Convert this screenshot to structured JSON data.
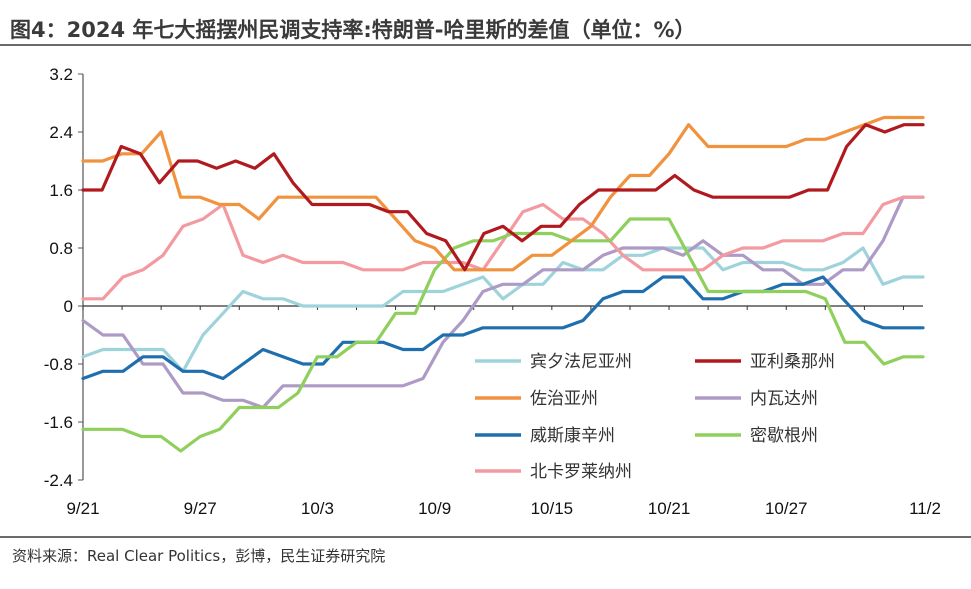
{
  "title": "图4：2024 年七大摇摆州民调支持率:特朗普-哈里斯的差值（单位：%）",
  "source": "资料来源：Real Clear Politics，彭博，民生证券研究院",
  "chart_data": {
    "type": "line",
    "title": "图4：2024 年七大摇摆州民调支持率:特朗普-哈里斯的差值（单位：%）",
    "xlabel": "",
    "ylabel": "",
    "ylim": [
      -2.4,
      3.2
    ],
    "yticks": [
      "3.2",
      "2.4",
      "1.6",
      "0.8",
      "0",
      "-0.8",
      "-1.6",
      "-2.4"
    ],
    "xticks": [
      "9/21",
      "9/27",
      "10/3",
      "10/9",
      "10/15",
      "10/21",
      "10/27",
      "11/2"
    ],
    "grid": false,
    "legend_position": "bottom-right",
    "series": [
      {
        "name": "宾夕法尼亚州",
        "color": "#9fd3dc",
        "values": [
          -0.7,
          -0.6,
          -0.6,
          -0.6,
          -0.6,
          -0.9,
          -0.4,
          -0.1,
          0.2,
          0.1,
          0.1,
          0.0,
          0.0,
          0.0,
          0.0,
          0.0,
          0.2,
          0.2,
          0.2,
          0.3,
          0.4,
          0.1,
          0.3,
          0.3,
          0.6,
          0.5,
          0.5,
          0.7,
          0.7,
          0.8,
          0.8,
          0.8,
          0.5,
          0.6,
          0.6,
          0.6,
          0.5,
          0.5,
          0.6,
          0.8,
          0.3,
          0.4,
          0.4
        ]
      },
      {
        "name": "亚利桑那州",
        "color": "#b0191e",
        "values": [
          1.6,
          1.6,
          2.2,
          2.1,
          1.7,
          2.0,
          2.0,
          1.9,
          2.0,
          1.9,
          2.1,
          1.7,
          1.4,
          1.4,
          1.4,
          1.4,
          1.3,
          1.3,
          1.0,
          0.9,
          0.5,
          1.0,
          1.1,
          0.9,
          1.1,
          1.1,
          1.4,
          1.6,
          1.6,
          1.6,
          1.6,
          1.8,
          1.6,
          1.5,
          1.5,
          1.5,
          1.5,
          1.5,
          1.6,
          1.6,
          2.2,
          2.5,
          2.4,
          2.5,
          2.5
        ]
      },
      {
        "name": "佐治亚州",
        "color": "#f0923e",
        "values": [
          2.0,
          2.0,
          2.1,
          2.1,
          2.4,
          1.5,
          1.5,
          1.4,
          1.4,
          1.2,
          1.5,
          1.5,
          1.5,
          1.5,
          1.5,
          1.5,
          1.2,
          0.9,
          0.8,
          0.5,
          0.5,
          0.5,
          0.5,
          0.7,
          0.7,
          0.9,
          1.1,
          1.5,
          1.8,
          1.8,
          2.1,
          2.5,
          2.2,
          2.2,
          2.2,
          2.2,
          2.2,
          2.3,
          2.3,
          2.4,
          2.5,
          2.6,
          2.6,
          2.6
        ]
      },
      {
        "name": "内瓦达州",
        "color": "#ad9bc6",
        "values": [
          -0.2,
          -0.4,
          -0.4,
          -0.8,
          -0.8,
          -1.2,
          -1.2,
          -1.3,
          -1.3,
          -1.4,
          -1.1,
          -1.1,
          -1.1,
          -1.1,
          -1.1,
          -1.1,
          -1.1,
          -1.0,
          -0.5,
          -0.2,
          0.2,
          0.3,
          0.3,
          0.5,
          0.5,
          0.5,
          0.7,
          0.8,
          0.8,
          0.8,
          0.7,
          0.9,
          0.7,
          0.7,
          0.5,
          0.5,
          0.3,
          0.3,
          0.5,
          0.5,
          0.9,
          1.5,
          1.5
        ]
      },
      {
        "name": "威斯康辛州",
        "color": "#1f6fae",
        "values": [
          -1.0,
          -0.9,
          -0.9,
          -0.7,
          -0.7,
          -0.9,
          -0.9,
          -1.0,
          -0.8,
          -0.6,
          -0.7,
          -0.8,
          -0.8,
          -0.5,
          -0.5,
          -0.5,
          -0.6,
          -0.6,
          -0.4,
          -0.4,
          -0.3,
          -0.3,
          -0.3,
          -0.3,
          -0.3,
          -0.2,
          0.1,
          0.2,
          0.2,
          0.4,
          0.4,
          0.1,
          0.1,
          0.2,
          0.2,
          0.3,
          0.3,
          0.4,
          0.1,
          -0.2,
          -0.3,
          -0.3,
          -0.3
        ]
      },
      {
        "name": "密歇根州",
        "color": "#8fcf5c",
        "values": [
          -1.7,
          -1.7,
          -1.7,
          -1.8,
          -1.8,
          -2.0,
          -1.8,
          -1.7,
          -1.4,
          -1.4,
          -1.4,
          -1.2,
          -0.7,
          -0.7,
          -0.5,
          -0.5,
          -0.1,
          -0.1,
          0.5,
          0.8,
          0.9,
          0.9,
          1.0,
          1.0,
          1.0,
          0.9,
          0.9,
          0.9,
          1.2,
          1.2,
          1.2,
          0.7,
          0.2,
          0.2,
          0.2,
          0.2,
          0.2,
          0.2,
          0.1,
          -0.5,
          -0.5,
          -0.8,
          -0.7,
          -0.7
        ]
      },
      {
        "name": "北卡罗莱纳州",
        "color": "#f39aa0",
        "values": [
          0.1,
          0.1,
          0.4,
          0.5,
          0.7,
          1.1,
          1.2,
          1.4,
          0.7,
          0.6,
          0.7,
          0.6,
          0.6,
          0.6,
          0.5,
          0.5,
          0.5,
          0.6,
          0.6,
          0.6,
          0.5,
          0.9,
          1.3,
          1.4,
          1.2,
          1.2,
          1.0,
          0.7,
          0.5,
          0.5,
          0.5,
          0.5,
          0.7,
          0.8,
          0.8,
          0.9,
          0.9,
          0.9,
          1.0,
          1.0,
          1.4,
          1.5,
          1.5
        ]
      }
    ]
  }
}
